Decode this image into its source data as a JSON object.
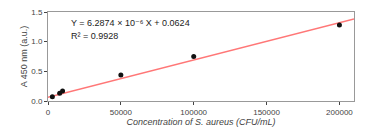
{
  "chart_data": {
    "type": "scatter",
    "series": [
      {
        "type": "scatter",
        "color": "#111111",
        "marker": "circle",
        "x": [
          3000,
          8000,
          10000,
          50000,
          100000,
          200000
        ],
        "values": [
          0.07,
          0.13,
          0.17,
          0.44,
          0.75,
          1.28
        ]
      },
      {
        "type": "line",
        "color": "#ff7777",
        "line_style": "solid",
        "x": [
          0,
          210000
        ],
        "values": [
          0.0624,
          1.382754
        ]
      }
    ],
    "annotations": [
      "Y = 6.2874 × 10⁻⁶ X + 0.0624",
      "R² = 0.9928"
    ],
    "xlabel": "Concentration of S. aureus (CFU/mL)",
    "ylabel": "A 450 nm (a.u.)",
    "xlim": [
      0,
      210000
    ],
    "ylim": [
      0,
      1.5
    ],
    "xticks": [
      0,
      50000,
      100000,
      150000,
      200000
    ],
    "yticks": [
      {
        "value": 0,
        "label": "0.0"
      },
      0.5,
      {
        "value": 1,
        "label": "1.0"
      },
      1.5
    ],
    "grid": false
  }
}
